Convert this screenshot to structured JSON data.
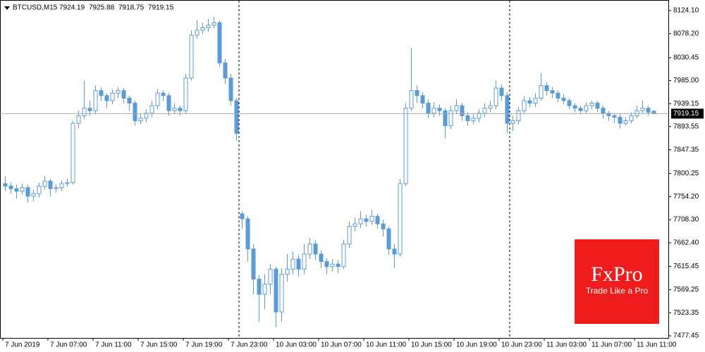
{
  "chart_data": {
    "type": "candlestick",
    "symbol": "BTCUSD,M15",
    "color": "#5b9bd5",
    "grid": false,
    "categories": [
      "7 Jun 2019",
      null,
      null,
      null,
      null,
      null,
      null,
      null,
      "7 Jun 07:00",
      null,
      null,
      null,
      null,
      null,
      null,
      null,
      "7 Jun 11:00",
      null,
      null,
      null,
      null,
      null,
      null,
      null,
      "7 Jun 15:00",
      null,
      null,
      null,
      null,
      null,
      null,
      null,
      "7 Jun 19:00",
      null,
      null,
      null,
      null,
      null,
      null,
      null,
      "7 Jun 23:00",
      null,
      null,
      null,
      null,
      null,
      null,
      null,
      "10 Jun 03:00",
      null,
      null,
      null,
      null,
      null,
      null,
      null,
      "10 Jun 07:00",
      null,
      null,
      null,
      null,
      null,
      null,
      null,
      "10 Jun 11:00",
      null,
      null,
      null,
      null,
      null,
      null,
      null,
      "10 Jun 15:00",
      null,
      null,
      null,
      null,
      null,
      null,
      null,
      "10 Jun 19:00",
      null,
      null,
      null,
      null,
      null,
      null,
      null,
      "10 Jun 23:00",
      null,
      null,
      null,
      null,
      null,
      null,
      null,
      "11 Jun 03:00",
      null,
      null,
      null,
      null,
      null,
      null,
      null,
      "11 Jun 07:00",
      null,
      null,
      null,
      null,
      null,
      null,
      null,
      "11 Jun 11:00",
      null,
      null,
      null
    ],
    "open": [
      7780,
      7775,
      7770,
      7765,
      7772,
      7755,
      7760,
      7775,
      7785,
      7770,
      7772,
      7780,
      7782,
      7900,
      7915,
      7930,
      7925,
      7965,
      7955,
      7945,
      7960,
      7965,
      7950,
      7940,
      7905,
      7910,
      7920,
      7935,
      7960,
      7955,
      7925,
      7930,
      7925,
      7990,
      8075,
      8085,
      8090,
      8095,
      8100,
      8020,
      7990,
      7945,
      7720,
      7710,
      7650,
      7590,
      7560,
      7580,
      7610,
      7525,
      7600,
      7610,
      7630,
      7610,
      7640,
      7660,
      7640,
      7625,
      7615,
      7620,
      7615,
      7660,
      7695,
      7700,
      7710,
      7705,
      7715,
      7700,
      7690,
      7650,
      7640,
      7780,
      7930,
      7965,
      7955,
      7940,
      7920,
      7930,
      7925,
      7895,
      7925,
      7935,
      7915,
      7905,
      7910,
      7920,
      7930,
      7935,
      7970,
      7955,
      7900,
      7905,
      7925,
      7945,
      7940,
      7950,
      7975,
      7965,
      7960,
      7950,
      7945,
      7935,
      7930,
      7925,
      7935,
      7940,
      7930,
      7920,
      7915,
      7912,
      7900,
      7905,
      7915,
      7925,
      7930,
      7924.19
    ],
    "high": [
      7795,
      7782,
      7778,
      7780,
      7778,
      7768,
      7782,
      7795,
      7790,
      7778,
      7786,
      7790,
      7905,
      7925,
      7985,
      7945,
      7975,
      7972,
      7960,
      7968,
      7972,
      7970,
      7955,
      7945,
      7920,
      7928,
      7945,
      7968,
      7965,
      7960,
      7940,
      7935,
      7998,
      8085,
      8105,
      8100,
      8108,
      8112,
      8105,
      8028,
      7998,
      7950,
      7725,
      7715,
      7660,
      7598,
      7600,
      7620,
      7615,
      7612,
      7640,
      7645,
      7638,
      7660,
      7672,
      7668,
      7648,
      7632,
      7630,
      7628,
      7668,
      7705,
      7712,
      7725,
      7718,
      7728,
      7720,
      7708,
      7695,
      7660,
      7790,
      7940,
      8050,
      7975,
      7962,
      7948,
      7942,
      7938,
      7930,
      7935,
      7948,
      7940,
      7922,
      7918,
      7928,
      7940,
      7945,
      7985,
      7978,
      7962,
      7915,
      7932,
      7955,
      7952,
      7960,
      8000,
      7982,
      7972,
      7965,
      7958,
      7950,
      7940,
      7935,
      7942,
      7945,
      7944,
      7935,
      7925,
      7920,
      7918,
      7912,
      7922,
      7935,
      7945,
      7935,
      7925.88
    ],
    "low": [
      7765,
      7760,
      7750,
      7758,
      7742,
      7745,
      7752,
      7768,
      7755,
      7762,
      7766,
      7774,
      7778,
      7890,
      7908,
      7915,
      7918,
      7945,
      7930,
      7938,
      7950,
      7940,
      7925,
      7895,
      7898,
      7902,
      7912,
      7928,
      7945,
      7915,
      7918,
      7915,
      7920,
      7985,
      8068,
      8078,
      8082,
      8088,
      8012,
      7978,
      7935,
      7865,
      7690,
      7625,
      7560,
      7505,
      7530,
      7560,
      7495,
      7505,
      7585,
      7600,
      7595,
      7600,
      7630,
      7628,
      7612,
      7600,
      7605,
      7602,
      7610,
      7652,
      7685,
      7692,
      7695,
      7698,
      7690,
      7675,
      7638,
      7612,
      7635,
      7775,
      7925,
      7940,
      7930,
      7910,
      7912,
      7915,
      7870,
      7888,
      7918,
      7905,
      7895,
      7898,
      7902,
      7912,
      7922,
      7928,
      7945,
      7880,
      7885,
      7898,
      7918,
      7932,
      7932,
      7945,
      7955,
      7950,
      7942,
      7938,
      7928,
      7922,
      7918,
      7920,
      7928,
      7922,
      7910,
      7905,
      7900,
      7890,
      7895,
      7900,
      7910,
      7920,
      7915,
      7918.75
    ],
    "close": [
      7775,
      7770,
      7765,
      7772,
      7755,
      7760,
      7775,
      7785,
      7770,
      7772,
      7780,
      7782,
      7900,
      7915,
      7930,
      7925,
      7965,
      7955,
      7945,
      7960,
      7965,
      7950,
      7940,
      7905,
      7910,
      7920,
      7935,
      7960,
      7955,
      7925,
      7930,
      7925,
      7990,
      8075,
      8085,
      8090,
      8095,
      8100,
      8020,
      7990,
      7945,
      7880,
      7710,
      7650,
      7590,
      7560,
      7580,
      7610,
      7525,
      7600,
      7610,
      7630,
      7610,
      7640,
      7660,
      7640,
      7625,
      7615,
      7620,
      7615,
      7660,
      7695,
      7700,
      7710,
      7705,
      7715,
      7700,
      7690,
      7650,
      7640,
      7780,
      7930,
      7965,
      7955,
      7940,
      7920,
      7930,
      7925,
      7895,
      7925,
      7935,
      7915,
      7905,
      7910,
      7920,
      7930,
      7935,
      7970,
      7955,
      7900,
      7905,
      7925,
      7945,
      7940,
      7950,
      7975,
      7965,
      7960,
      7950,
      7945,
      7935,
      7930,
      7925,
      7935,
      7940,
      7930,
      7920,
      7915,
      7912,
      7900,
      7905,
      7915,
      7925,
      7930,
      7922,
      7919.15
    ],
    "ylim": [
      7473.25,
      8140.9
    ],
    "yticks": [
      {
        "value": 8124.1,
        "label": "8124.10"
      },
      {
        "value": 8078.2,
        "label": "8078.20"
      },
      8030.45,
      {
        "value": 7985,
        "label": "7985.00"
      },
      7939.15,
      7893.55,
      7847.35,
      7800.25,
      {
        "value": 7754.2,
        "label": "7754.20"
      },
      {
        "value": 7708.3,
        "label": "7708.30"
      },
      {
        "value": 7662.4,
        "label": "7662.40"
      },
      7615.45,
      7569.25,
      7523.35,
      7477.45
    ]
  },
  "logo": {
    "brand": "FxPro",
    "tagline": "Trade Like a Pro"
  }
}
